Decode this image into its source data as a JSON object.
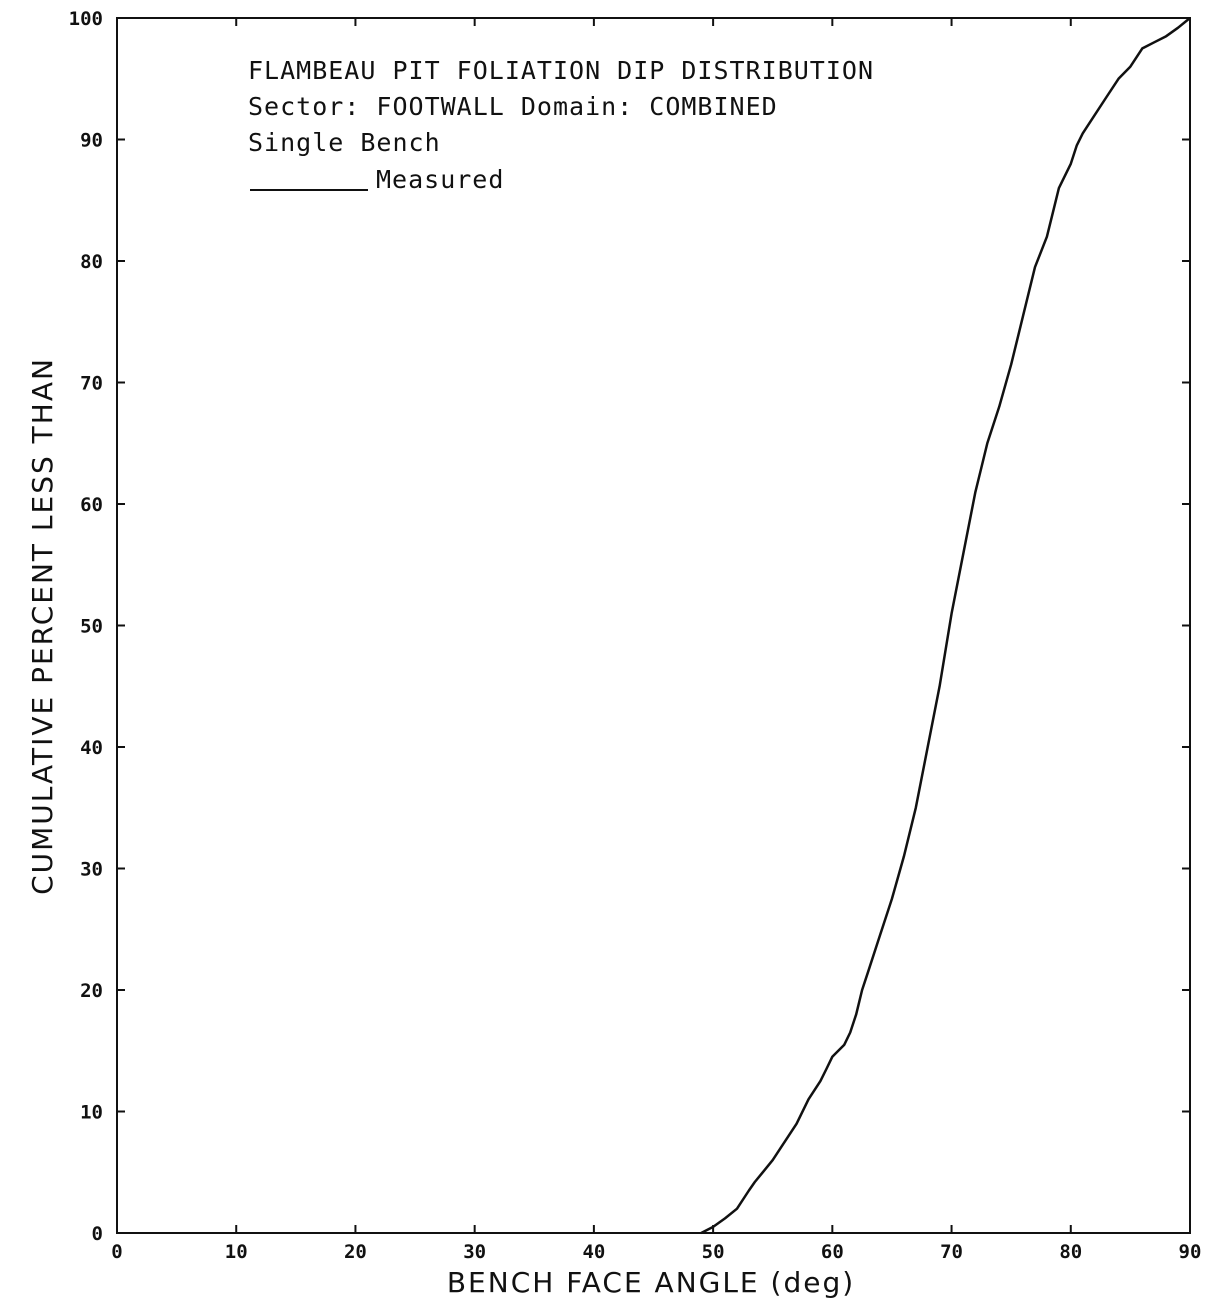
{
  "chart_data": {
    "type": "line",
    "title_lines": [
      "FLAMBEAU PIT FOLIATION DIP DISTRIBUTION",
      "Sector: FOOTWALL  Domain: COMBINED",
      "Single Bench"
    ],
    "legend_label": "Measured",
    "legend_position": "top-left",
    "xlabel": "BENCH FACE ANGLE (deg)",
    "ylabel": "CUMULATIVE PERCENT LESS THAN",
    "xlim": [
      0,
      90
    ],
    "ylim": [
      0,
      100
    ],
    "x_ticks": [
      0,
      10,
      20,
      30,
      40,
      50,
      60,
      70,
      80,
      90
    ],
    "y_ticks": [
      0,
      10,
      20,
      30,
      40,
      50,
      60,
      70,
      80,
      90,
      100
    ],
    "x_tick_labels": [
      "0",
      "10",
      "20",
      "30",
      "40",
      "50",
      "60",
      "70",
      "80",
      "90"
    ],
    "y_tick_labels": [
      "0",
      "10",
      "20",
      "30",
      "40",
      "50",
      "60",
      "70",
      "80",
      "90",
      "100"
    ],
    "grid": false,
    "series": [
      {
        "name": "Measured",
        "x": [
          49.0,
          50.0,
          51.0,
          52.0,
          53.0,
          53.5,
          54.0,
          55.0,
          56.0,
          57.0,
          58.0,
          59.0,
          59.5,
          60.0,
          60.5,
          61.0,
          61.5,
          62.0,
          62.5,
          63.0,
          64.0,
          65.0,
          66.0,
          67.0,
          68.0,
          69.0,
          69.5,
          70.0,
          71.0,
          72.0,
          72.5,
          73.0,
          74.0,
          75.0,
          76.0,
          77.0,
          78.0,
          78.5,
          79.0,
          80.0,
          80.5,
          81.0,
          82.0,
          83.0,
          84.0,
          85.0,
          86.0,
          87.0,
          88.0,
          89.0,
          90.0
        ],
        "y": [
          0.0,
          0.5,
          1.2,
          2.0,
          3.5,
          4.2,
          4.8,
          6.0,
          7.5,
          9.0,
          11.0,
          12.5,
          13.5,
          14.5,
          15.0,
          15.5,
          16.5,
          18.0,
          20.0,
          21.5,
          24.5,
          27.5,
          31.0,
          35.0,
          40.0,
          45.0,
          48.0,
          51.0,
          56.0,
          61.0,
          63.0,
          65.0,
          68.0,
          71.5,
          75.5,
          79.5,
          82.0,
          84.0,
          86.0,
          88.0,
          89.5,
          90.5,
          92.0,
          93.5,
          95.0,
          96.0,
          97.5,
          98.0,
          98.5,
          99.2,
          100.0
        ]
      }
    ]
  }
}
